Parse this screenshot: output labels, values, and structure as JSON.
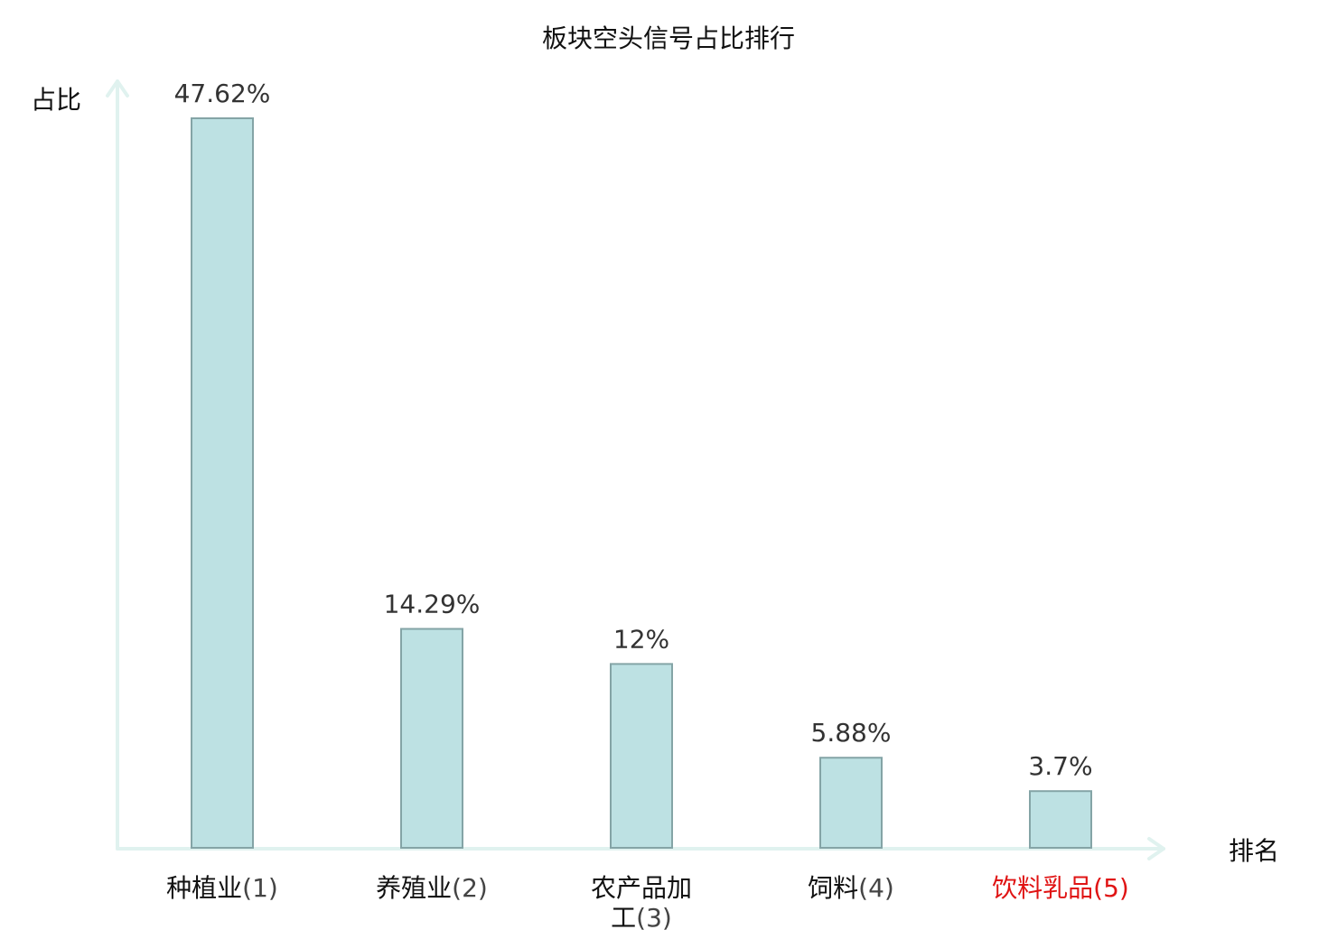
{
  "chart_data": {
    "type": "bar",
    "title": "板块空头信号占比排行",
    "ylabel": "占比",
    "xlabel": "排名",
    "categories": [
      {
        "name": "种植业",
        "rank": "(1)",
        "lines": [
          "种植业(1)"
        ]
      },
      {
        "name": "养殖业",
        "rank": "(2)",
        "lines": [
          "养殖业(2)"
        ]
      },
      {
        "name": "农产品加工",
        "rank": "(3)",
        "lines": [
          "农产品加",
          "工(3)"
        ]
      },
      {
        "name": "饲料",
        "rank": "(4)",
        "lines": [
          "饲料(4)"
        ]
      },
      {
        "name": "饮料乳品",
        "rank": "(5)",
        "lines": [
          "饮料乳品(5)"
        ]
      }
    ],
    "values": [
      47.62,
      14.29,
      12,
      5.88,
      3.7
    ],
    "value_labels": [
      "47.62%",
      "14.29%",
      "12%",
      "5.88%",
      "3.7%"
    ],
    "highlight_index": 4,
    "ylim": [
      0,
      47.62
    ],
    "grid": false,
    "legend": "none",
    "colors": {
      "bar_fill": "#bde1e3",
      "bar_stroke": "#84a4a6",
      "axis": "#e0f2ef",
      "highlight_text": "#e01414",
      "name_text": "#111111",
      "rank_text": "#444444"
    }
  }
}
